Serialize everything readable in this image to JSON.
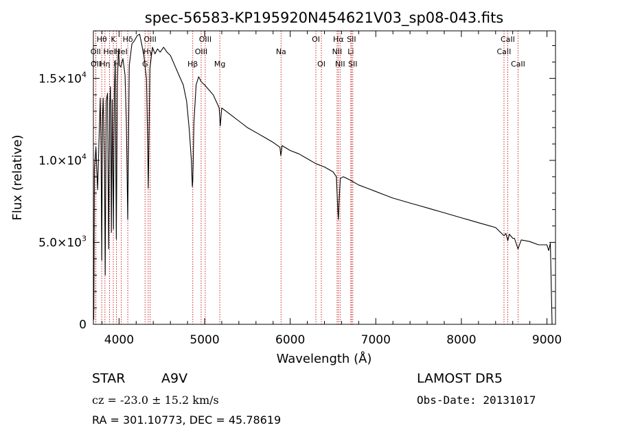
{
  "chart_data": {
    "type": "line",
    "title": "spec-56583-KP195920N454621V03_sp08-043.fits",
    "xlabel": "Wavelength (Å)",
    "ylabel": "Flux (relative)",
    "xlim": [
      3700,
      9100
    ],
    "ylim": [
      0,
      17900
    ],
    "x_ticks": [
      4000,
      5000,
      6000,
      7000,
      8000,
      9000
    ],
    "x_tick_labels": [
      "4000",
      "5000",
      "6000",
      "7000",
      "8000",
      "9000"
    ],
    "y_ticks": [
      0,
      5000,
      10000,
      15000
    ],
    "y_tick_labels": [
      {
        "mant": "0",
        "exp": ""
      },
      {
        "mant": "5.0×10",
        "exp": "3"
      },
      {
        "mant": "1.0×10",
        "exp": "4"
      },
      {
        "mant": "1.5×10",
        "exp": "4"
      }
    ],
    "line_color": "#000000",
    "marker_color": "#cc2222",
    "series": [
      {
        "x": [
          3700,
          3705,
          3712,
          3730,
          3750,
          3770,
          3780,
          3790,
          3798,
          3806,
          3815,
          3830,
          3838,
          3850,
          3865,
          3878,
          3890,
          3900,
          3910,
          3920,
          3934,
          3945,
          3955,
          3968,
          3980,
          3992,
          4005,
          4020,
          4045,
          4070,
          4085,
          4095,
          4101,
          4108,
          4120,
          4150,
          4180,
          4210,
          4240,
          4260,
          4290,
          4320,
          4335,
          4341,
          4347,
          4360,
          4390,
          4420,
          4450,
          4480,
          4520,
          4560,
          4600,
          4650,
          4700,
          4750,
          4790,
          4820,
          4845,
          4856,
          4861,
          4866,
          4875,
          4900,
          4930,
          4960,
          5000,
          5050,
          5100,
          5170,
          5183,
          5200,
          5300,
          5400,
          5500,
          5600,
          5700,
          5800,
          5880,
          5890,
          5896,
          5905,
          6000,
          6100,
          6200,
          6300,
          6400,
          6500,
          6540,
          6556,
          6563,
          6570,
          6585,
          6620,
          6700,
          6800,
          6900,
          7000,
          7100,
          7200,
          7300,
          7400,
          7500,
          7600,
          7700,
          7800,
          7900,
          8000,
          8100,
          8200,
          8300,
          8400,
          8498,
          8520,
          8542,
          8560,
          8600,
          8620,
          8662,
          8700,
          8800,
          8900,
          9000,
          9020,
          9040,
          9060
        ],
        "y": [
          5200,
          300,
          9500,
          10800,
          8200,
          12000,
          13800,
          10500,
          3900,
          12500,
          13800,
          9600,
          3000,
          13600,
          14100,
          4600,
          13400,
          14500,
          5600,
          13700,
          5800,
          14200,
          16100,
          5200,
          14600,
          16800,
          15800,
          15700,
          16200,
          15200,
          12300,
          8900,
          6400,
          9800,
          15800,
          17100,
          17300,
          17600,
          17700,
          17200,
          16400,
          15000,
          11000,
          8300,
          10200,
          15600,
          16900,
          16500,
          16800,
          16600,
          16900,
          16600,
          16400,
          15800,
          15200,
          14600,
          13600,
          11900,
          10000,
          8400,
          8700,
          9800,
          12300,
          14600,
          15100,
          14800,
          14600,
          14300,
          14000,
          13200,
          12100,
          13200,
          12800,
          12400,
          12000,
          11700,
          11400,
          11100,
          10800,
          10300,
          10500,
          10900,
          10600,
          10400,
          10100,
          9800,
          9600,
          9300,
          9000,
          7000,
          6400,
          7400,
          8900,
          9000,
          8800,
          8500,
          8300,
          8100,
          7900,
          7700,
          7550,
          7400,
          7250,
          7100,
          6950,
          6800,
          6650,
          6500,
          6350,
          6200,
          6050,
          5900,
          5400,
          5550,
          5100,
          5500,
          5250,
          5250,
          4600,
          5150,
          5050,
          4850,
          4850,
          4500,
          4950,
          0
        ]
      }
    ],
    "lines": [
      {
        "x": 3727,
        "top": "OII",
        "row": 1
      },
      {
        "x": 3729,
        "top": "OII",
        "row": 2
      },
      {
        "x": 3798,
        "top": "Hθ",
        "row": 0
      },
      {
        "x": 3835,
        "top": "Hη",
        "row": 2
      },
      {
        "x": 3889,
        "top": "HeI",
        "row": 1
      },
      {
        "x": 3933,
        "top": "K",
        "row": 0
      },
      {
        "x": 3969,
        "top": "H",
        "row": 2
      },
      {
        "x": 4026,
        "top": "HeI",
        "row": 1
      },
      {
        "x": 4102,
        "top": "Hδ",
        "row": 0
      },
      {
        "x": 4304,
        "top": "G",
        "row": 2
      },
      {
        "x": 4340,
        "top": "Hγ",
        "row": 1
      },
      {
        "x": 4363,
        "top": "OIII",
        "row": 0
      },
      {
        "x": 4861,
        "top": "Hβ",
        "row": 2
      },
      {
        "x": 4959,
        "top": "OIII",
        "row": 1
      },
      {
        "x": 5007,
        "top": "OIII",
        "row": 0
      },
      {
        "x": 5177,
        "top": "Mg",
        "row": 2
      },
      {
        "x": 5893,
        "top": "Na",
        "row": 1
      },
      {
        "x": 6300,
        "top": "OI",
        "row": 0
      },
      {
        "x": 6364,
        "top": "OI",
        "row": 2
      },
      {
        "x": 6548,
        "top": "NII",
        "row": 1
      },
      {
        "x": 6563,
        "top": "Hα",
        "row": 0
      },
      {
        "x": 6583,
        "top": "NII",
        "row": 2
      },
      {
        "x": 6708,
        "top": "Li",
        "row": 1
      },
      {
        "x": 6716,
        "top": "SII",
        "row": 0
      },
      {
        "x": 6731,
        "top": "SII",
        "row": 2
      },
      {
        "x": 8498,
        "top": "CaII",
        "row": 1
      },
      {
        "x": 8542,
        "top": "CaII",
        "row": 0
      },
      {
        "x": 8662,
        "top": "CaII",
        "row": 2
      }
    ]
  },
  "footer": {
    "object_type": "STAR",
    "subclass": "A9V",
    "survey": "LAMOST DR5",
    "velocity": "cz = -23.0 ± 15.2 km/s",
    "obs_date": "Obs-Date: 20131017",
    "coords": "RA = 301.10773, DEC =  45.78619"
  }
}
